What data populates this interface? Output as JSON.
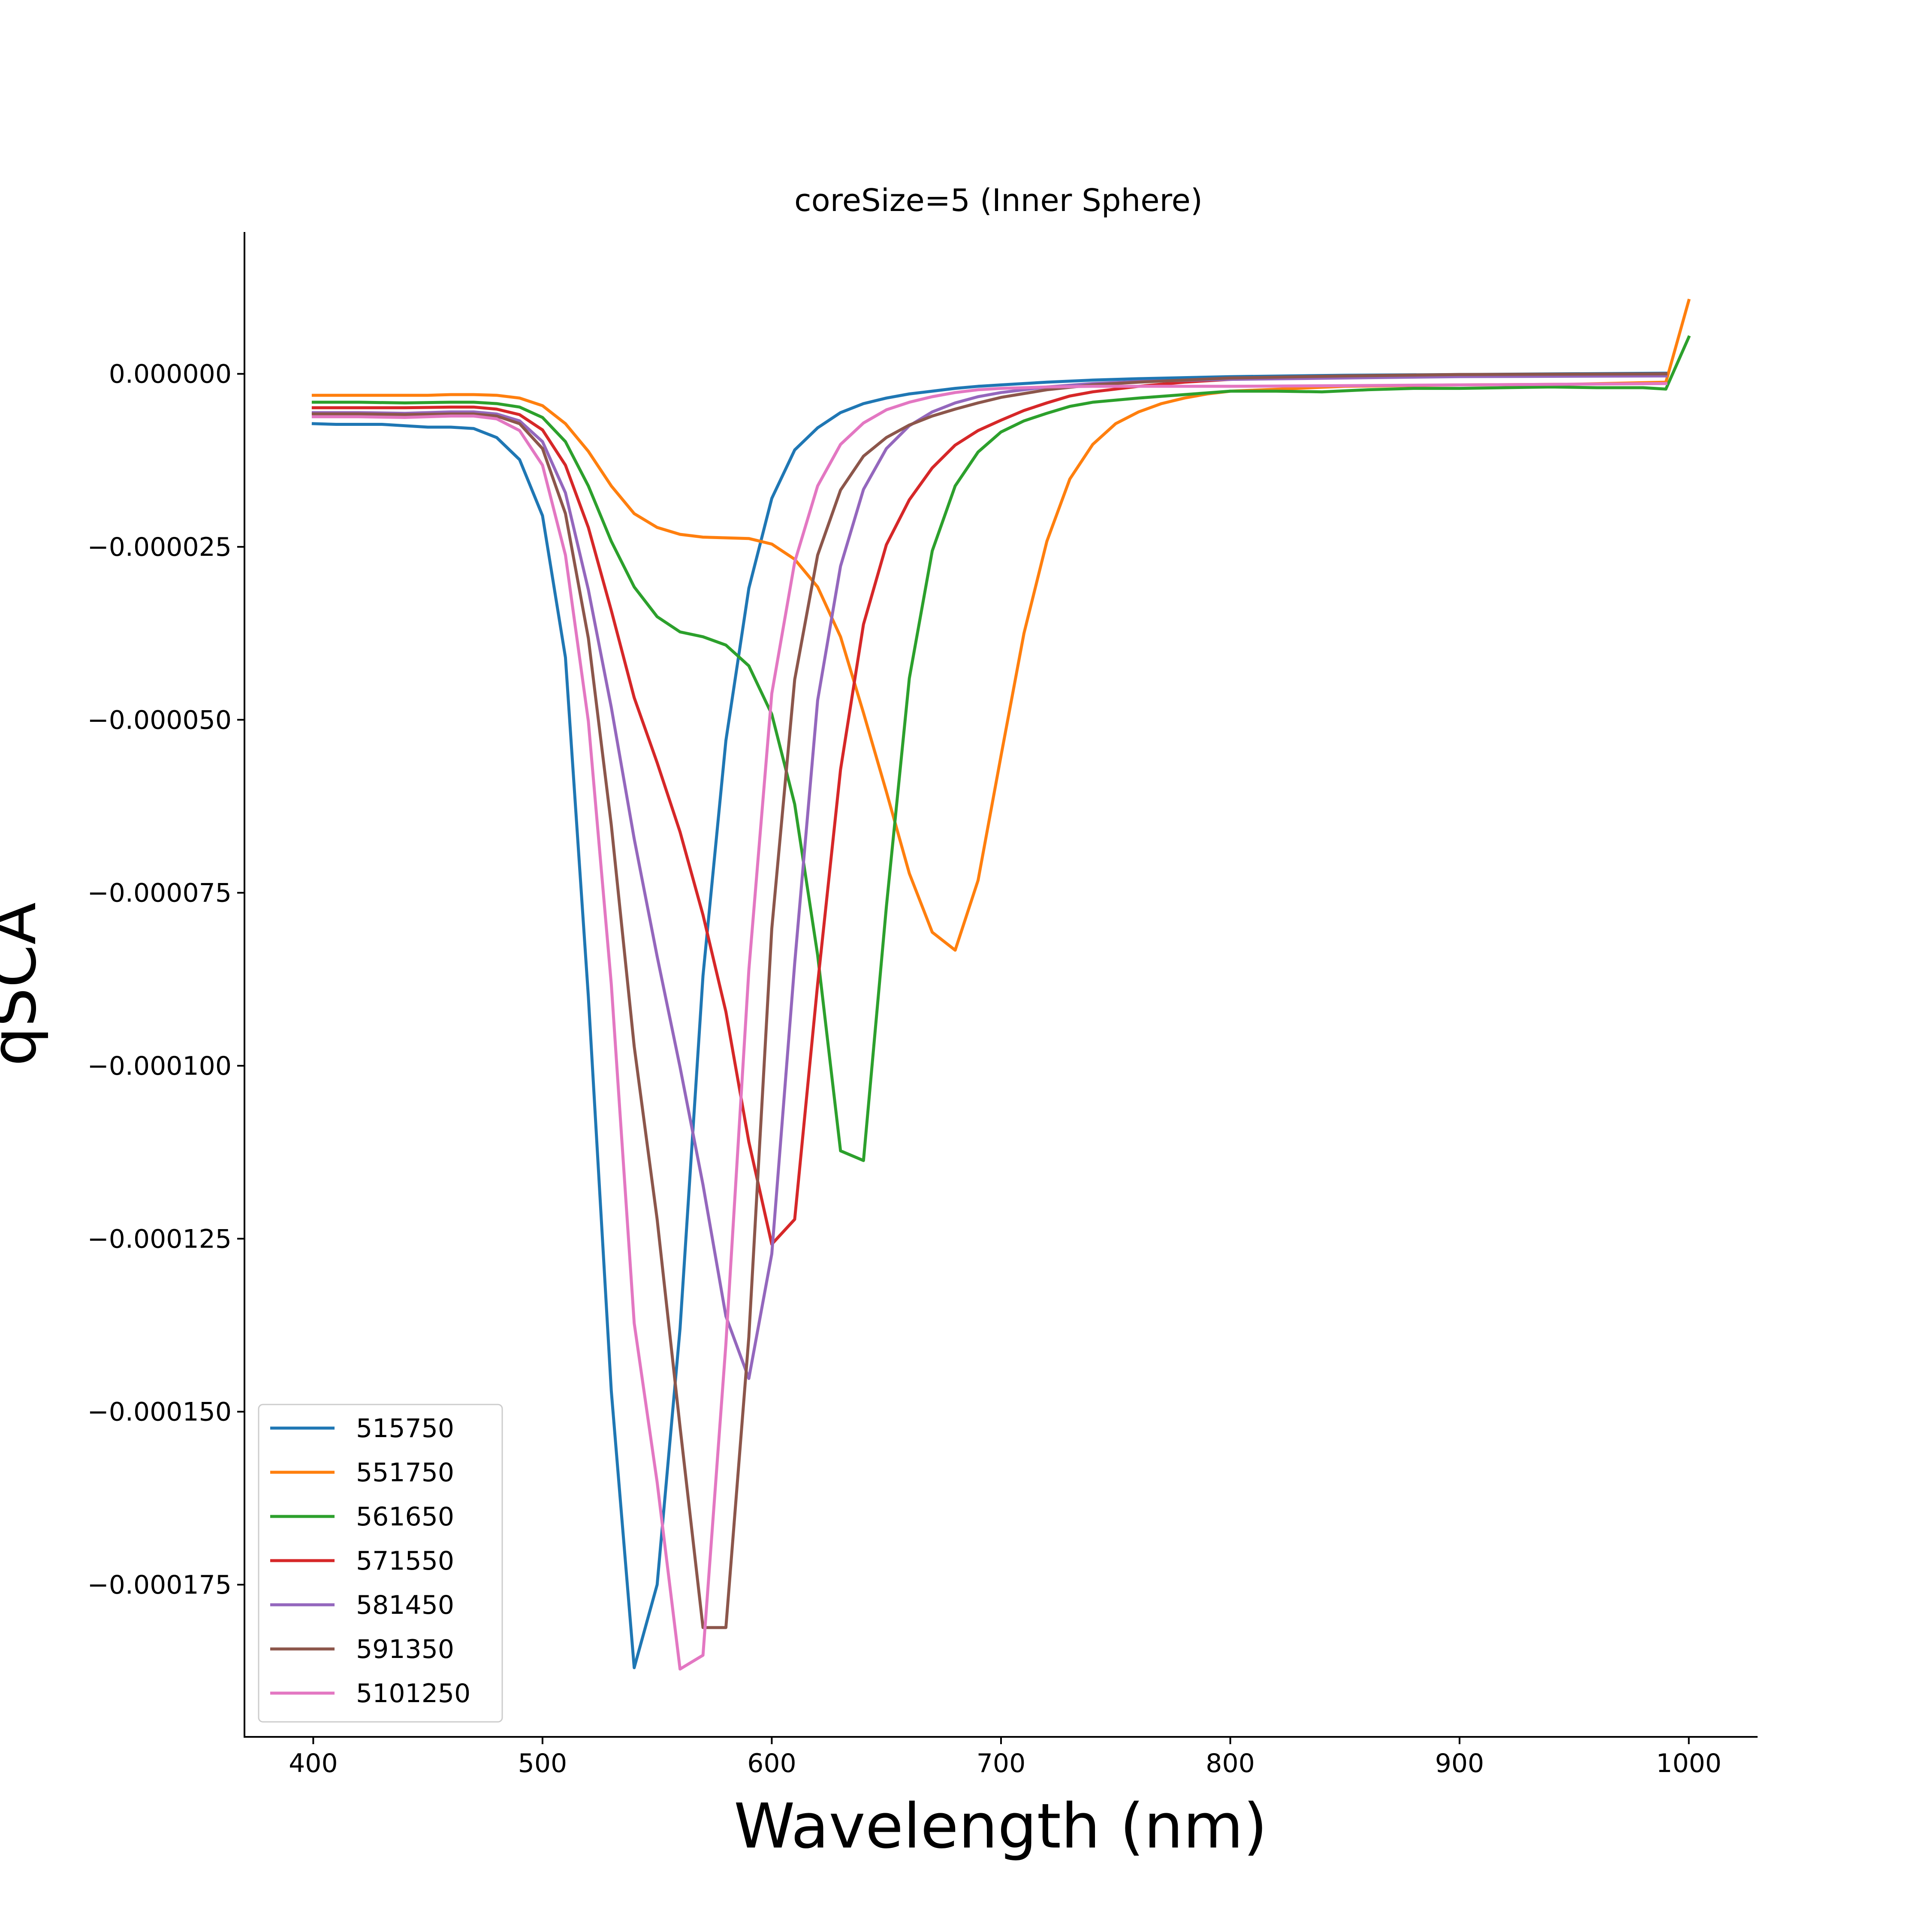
{
  "chart_data": {
    "type": "line",
    "title": "coreSize=5 (Inner Sphere)",
    "xlabel": "Wavelength (nm)",
    "ylabel": "qSCA",
    "xlim": [
      370,
      1030
    ],
    "ylim": [
      -0.000197,
      2.05e-05
    ],
    "grid": false,
    "legend_position": "lower-left",
    "x_ticks": [
      400,
      500,
      600,
      700,
      800,
      900,
      1000
    ],
    "x_tick_labels": [
      "400",
      "500",
      "600",
      "700",
      "800",
      "900",
      "1000"
    ],
    "y_ticks": [
      0,
      -2.5e-05,
      -5e-05,
      -7.5e-05,
      -0.0001,
      -0.000125,
      -0.00015,
      -0.000175
    ],
    "y_tick_labels": [
      "0.000000",
      "−0.000025",
      "−0.000050",
      "−0.000075",
      "−0.000100",
      "−0.000125",
      "−0.000150",
      "−0.000175"
    ],
    "series": [
      {
        "name": "515750",
        "color": "#1f77b4",
        "points": [
          [
            400,
            -7.2e-06
          ],
          [
            410,
            -7.3e-06
          ],
          [
            420,
            -7.3e-06
          ],
          [
            430,
            -7.3e-06
          ],
          [
            440,
            -7.5e-06
          ],
          [
            450,
            -7.7e-06
          ],
          [
            460,
            -7.7e-06
          ],
          [
            470,
            -7.9e-06
          ],
          [
            480,
            -9.2e-06
          ],
          [
            490,
            -1.24e-05
          ],
          [
            500,
            -2.05e-05
          ],
          [
            510,
            -4.1e-05
          ],
          [
            520,
            -9e-05
          ],
          [
            530,
            -0.000147
          ],
          [
            540,
            -0.000187
          ],
          [
            550,
            -0.000175
          ],
          [
            560,
            -0.000138
          ],
          [
            570,
            -8.7e-05
          ],
          [
            580,
            -5.3e-05
          ],
          [
            590,
            -3.1e-05
          ],
          [
            600,
            -1.8e-05
          ],
          [
            610,
            -1.1e-05
          ],
          [
            620,
            -7.8e-06
          ],
          [
            630,
            -5.6e-06
          ],
          [
            640,
            -4.3e-06
          ],
          [
            650,
            -3.5e-06
          ],
          [
            660,
            -2.9e-06
          ],
          [
            670,
            -2.5e-06
          ],
          [
            680,
            -2.1e-06
          ],
          [
            690,
            -1.8e-06
          ],
          [
            700,
            -1.6e-06
          ],
          [
            720,
            -1.2e-06
          ],
          [
            740,
            -9e-07
          ],
          [
            760,
            -7e-07
          ],
          [
            800,
            -4e-07
          ],
          [
            850,
            -2e-07
          ],
          [
            900,
            -1e-07
          ],
          [
            990,
            1e-07
          ]
        ]
      },
      {
        "name": "551750",
        "color": "#ff7f0e",
        "points": [
          [
            400,
            -3.1e-06
          ],
          [
            420,
            -3.1e-06
          ],
          [
            440,
            -3.1e-06
          ],
          [
            450,
            -3.1e-06
          ],
          [
            460,
            -3e-06
          ],
          [
            470,
            -3e-06
          ],
          [
            480,
            -3.1e-06
          ],
          [
            490,
            -3.5e-06
          ],
          [
            500,
            -4.6e-06
          ],
          [
            510,
            -7.2e-06
          ],
          [
            520,
            -1.12e-05
          ],
          [
            530,
            -1.62e-05
          ],
          [
            540,
            -2.02e-05
          ],
          [
            550,
            -2.22e-05
          ],
          [
            560,
            -2.32e-05
          ],
          [
            570,
            -2.36e-05
          ],
          [
            580,
            -2.37e-05
          ],
          [
            590,
            -2.38e-05
          ],
          [
            600,
            -2.46e-05
          ],
          [
            610,
            -2.68e-05
          ],
          [
            620,
            -3.08e-05
          ],
          [
            630,
            -3.8e-05
          ],
          [
            640,
            -4.9e-05
          ],
          [
            650,
            -6.04e-05
          ],
          [
            660,
            -7.22e-05
          ],
          [
            670,
            -8.07e-05
          ],
          [
            680,
            -8.33e-05
          ],
          [
            690,
            -7.32e-05
          ],
          [
            700,
            -5.52e-05
          ],
          [
            710,
            -3.75e-05
          ],
          [
            720,
            -2.42e-05
          ],
          [
            730,
            -1.52e-05
          ],
          [
            740,
            -1.02e-05
          ],
          [
            750,
            -7.2e-06
          ],
          [
            760,
            -5.5e-06
          ],
          [
            770,
            -4.3e-06
          ],
          [
            780,
            -3.5e-06
          ],
          [
            790,
            -2.9e-06
          ],
          [
            800,
            -2.5e-06
          ],
          [
            850,
            -1.8e-06
          ],
          [
            900,
            -1.6e-06
          ],
          [
            950,
            -1.5e-06
          ],
          [
            990,
            -1.2e-06
          ],
          [
            1000,
            1.06e-05
          ]
        ]
      },
      {
        "name": "561650",
        "color": "#2ca02c",
        "points": [
          [
            400,
            -4.1e-06
          ],
          [
            420,
            -4.1e-06
          ],
          [
            440,
            -4.2e-06
          ],
          [
            460,
            -4.1e-06
          ],
          [
            470,
            -4.1e-06
          ],
          [
            480,
            -4.3e-06
          ],
          [
            490,
            -4.8e-06
          ],
          [
            500,
            -6.3e-06
          ],
          [
            510,
            -9.8e-06
          ],
          [
            520,
            -1.62e-05
          ],
          [
            530,
            -2.42e-05
          ],
          [
            540,
            -3.08e-05
          ],
          [
            550,
            -3.51e-05
          ],
          [
            560,
            -3.73e-05
          ],
          [
            570,
            -3.8e-05
          ],
          [
            580,
            -3.92e-05
          ],
          [
            590,
            -4.22e-05
          ],
          [
            600,
            -4.92e-05
          ],
          [
            610,
            -6.22e-05
          ],
          [
            620,
            -8.4e-05
          ],
          [
            630,
            -0.0001123
          ],
          [
            640,
            -0.0001137
          ],
          [
            650,
            -7.7e-05
          ],
          [
            660,
            -4.4e-05
          ],
          [
            670,
            -2.56e-05
          ],
          [
            680,
            -1.62e-05
          ],
          [
            690,
            -1.13e-05
          ],
          [
            700,
            -8.4e-06
          ],
          [
            710,
            -6.8e-06
          ],
          [
            720,
            -5.7e-06
          ],
          [
            730,
            -4.7e-06
          ],
          [
            740,
            -4.1e-06
          ],
          [
            760,
            -3.5e-06
          ],
          [
            780,
            -3e-06
          ],
          [
            800,
            -2.5e-06
          ],
          [
            820,
            -2.5e-06
          ],
          [
            840,
            -2.6e-06
          ],
          [
            860,
            -2.3e-06
          ],
          [
            880,
            -2.1e-06
          ],
          [
            900,
            -2.1e-06
          ],
          [
            920,
            -2e-06
          ],
          [
            940,
            -1.9e-06
          ],
          [
            960,
            -2e-06
          ],
          [
            980,
            -2e-06
          ],
          [
            990,
            -2.2e-06
          ],
          [
            1000,
            5.3e-06
          ]
        ]
      },
      {
        "name": "571550",
        "color": "#d62728",
        "points": [
          [
            400,
            -4.9e-06
          ],
          [
            420,
            -4.9e-06
          ],
          [
            440,
            -4.9e-06
          ],
          [
            460,
            -4.8e-06
          ],
          [
            470,
            -4.8e-06
          ],
          [
            480,
            -5.1e-06
          ],
          [
            490,
            -5.9e-06
          ],
          [
            500,
            -8.1e-06
          ],
          [
            510,
            -1.32e-05
          ],
          [
            520,
            -2.22e-05
          ],
          [
            530,
            -3.42e-05
          ],
          [
            540,
            -4.68e-05
          ],
          [
            550,
            -5.62e-05
          ],
          [
            560,
            -6.62e-05
          ],
          [
            570,
            -7.82e-05
          ],
          [
            580,
            -9.22e-05
          ],
          [
            590,
            -0.000111
          ],
          [
            600,
            -0.0001258
          ],
          [
            610,
            -0.0001222
          ],
          [
            620,
            -8.82e-05
          ],
          [
            630,
            -5.72e-05
          ],
          [
            640,
            -3.62e-05
          ],
          [
            650,
            -2.47e-05
          ],
          [
            660,
            -1.82e-05
          ],
          [
            670,
            -1.36e-05
          ],
          [
            680,
            -1.03e-05
          ],
          [
            690,
            -8.2e-06
          ],
          [
            700,
            -6.7e-06
          ],
          [
            710,
            -5.3e-06
          ],
          [
            720,
            -4.2e-06
          ],
          [
            730,
            -3.2e-06
          ],
          [
            740,
            -2.6e-06
          ],
          [
            760,
            -1.8e-06
          ],
          [
            780,
            -1.2e-06
          ],
          [
            800,
            -8e-07
          ],
          [
            850,
            -4e-07
          ],
          [
            900,
            -2e-07
          ],
          [
            990,
            0
          ]
        ]
      },
      {
        "name": "581450",
        "color": "#9467bd",
        "points": [
          [
            400,
            -5.6e-06
          ],
          [
            420,
            -5.6e-06
          ],
          [
            440,
            -5.7e-06
          ],
          [
            460,
            -5.5e-06
          ],
          [
            470,
            -5.5e-06
          ],
          [
            480,
            -5.8e-06
          ],
          [
            490,
            -6.8e-06
          ],
          [
            500,
            -9.8e-06
          ],
          [
            510,
            -1.72e-05
          ],
          [
            520,
            -3.12e-05
          ],
          [
            530,
            -4.82e-05
          ],
          [
            540,
            -6.72e-05
          ],
          [
            550,
            -8.42e-05
          ],
          [
            560,
            -0.0001002
          ],
          [
            570,
            -0.0001172
          ],
          [
            580,
            -0.0001362
          ],
          [
            590,
            -0.0001452
          ],
          [
            600,
            -0.0001272
          ],
          [
            610,
            -8.52e-05
          ],
          [
            620,
            -4.72e-05
          ],
          [
            630,
            -2.78e-05
          ],
          [
            640,
            -1.67e-05
          ],
          [
            650,
            -1.08e-05
          ],
          [
            660,
            -7.5e-06
          ],
          [
            670,
            -5.5e-06
          ],
          [
            680,
            -4.2e-06
          ],
          [
            690,
            -3.3e-06
          ],
          [
            700,
            -2.7e-06
          ],
          [
            720,
            -1.9e-06
          ],
          [
            740,
            -1.4e-06
          ],
          [
            760,
            -1.1e-06
          ],
          [
            800,
            -8e-07
          ],
          [
            850,
            -6e-07
          ],
          [
            900,
            -4e-07
          ],
          [
            990,
            -3e-07
          ]
        ]
      },
      {
        "name": "591350",
        "color": "#8c564b",
        "points": [
          [
            400,
            -5.8e-06
          ],
          [
            420,
            -5.8e-06
          ],
          [
            440,
            -5.9e-06
          ],
          [
            460,
            -5.8e-06
          ],
          [
            470,
            -5.8e-06
          ],
          [
            480,
            -6.1e-06
          ],
          [
            490,
            -7.2e-06
          ],
          [
            500,
            -1.08e-05
          ],
          [
            510,
            -2.02e-05
          ],
          [
            520,
            -3.82e-05
          ],
          [
            530,
            -6.52e-05
          ],
          [
            540,
            -9.72e-05
          ],
          [
            550,
            -0.0001222
          ],
          [
            560,
            -0.0001522
          ],
          [
            570,
            -0.0001812
          ],
          [
            580,
            -0.0001812
          ],
          [
            590,
            -0.0001392
          ],
          [
            600,
            -8.02e-05
          ],
          [
            610,
            -4.42e-05
          ],
          [
            620,
            -2.62e-05
          ],
          [
            630,
            -1.68e-05
          ],
          [
            640,
            -1.19e-05
          ],
          [
            650,
            -9.2e-06
          ],
          [
            660,
            -7.4e-06
          ],
          [
            670,
            -6.1e-06
          ],
          [
            680,
            -5.1e-06
          ],
          [
            690,
            -4.2e-06
          ],
          [
            700,
            -3.4e-06
          ],
          [
            720,
            -2.3e-06
          ],
          [
            740,
            -1.6e-06
          ],
          [
            760,
            -1.2e-06
          ],
          [
            800,
            -6e-07
          ],
          [
            850,
            -3e-07
          ],
          [
            900,
            -1e-07
          ],
          [
            990,
            0
          ]
        ]
      },
      {
        "name": "5101250",
        "color": "#e377c2",
        "points": [
          [
            400,
            -6.2e-06
          ],
          [
            420,
            -6.2e-06
          ],
          [
            440,
            -6.3e-06
          ],
          [
            460,
            -6.1e-06
          ],
          [
            470,
            -6.1e-06
          ],
          [
            480,
            -6.5e-06
          ],
          [
            490,
            -8.2e-06
          ],
          [
            500,
            -1.32e-05
          ],
          [
            510,
            -2.62e-05
          ],
          [
            520,
            -5.02e-05
          ],
          [
            530,
            -8.82e-05
          ],
          [
            540,
            -0.0001372
          ],
          [
            550,
            -0.0001602
          ],
          [
            560,
            -0.0001872
          ],
          [
            570,
            -0.0001852
          ],
          [
            580,
            -0.0001402
          ],
          [
            590,
            -8.62e-05
          ],
          [
            600,
            -4.62e-05
          ],
          [
            610,
            -2.72e-05
          ],
          [
            620,
            -1.62e-05
          ],
          [
            630,
            -1.02e-05
          ],
          [
            640,
            -7.1e-06
          ],
          [
            650,
            -5.2e-06
          ],
          [
            660,
            -4.1e-06
          ],
          [
            670,
            -3.3e-06
          ],
          [
            680,
            -2.7e-06
          ],
          [
            690,
            -2.3e-06
          ],
          [
            700,
            -2.1e-06
          ],
          [
            720,
            -1.9e-06
          ],
          [
            740,
            -1.8e-06
          ],
          [
            760,
            -1.8e-06
          ],
          [
            800,
            -1.8e-06
          ],
          [
            850,
            -1.7e-06
          ],
          [
            900,
            -1.6e-06
          ],
          [
            950,
            -1.5e-06
          ],
          [
            990,
            -1.4e-06
          ]
        ]
      }
    ]
  }
}
